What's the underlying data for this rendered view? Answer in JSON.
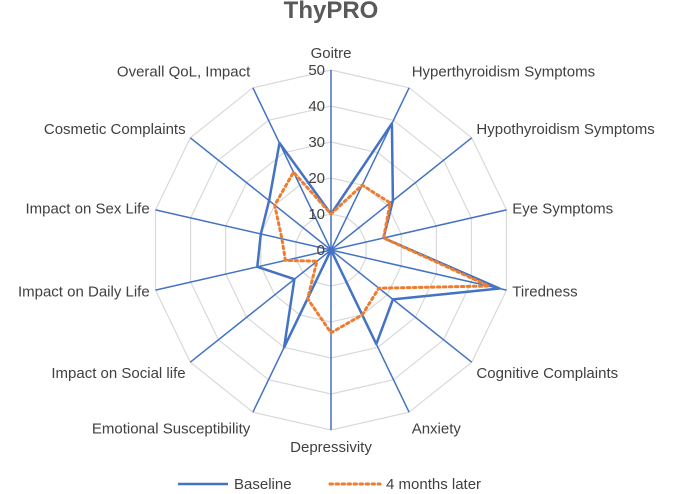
{
  "chart_data": {
    "type": "radar",
    "title": "ThyPRO",
    "categories": [
      "Goitre",
      "Hyperthyroidism Symptoms",
      "Hypothyroidism Symptoms",
      "Eye Symptoms",
      "Tiredness",
      "Cognitive Complaints",
      "Anxiety",
      "Depressivity",
      "Emotional Susceptibility",
      "Impact on Social life",
      "Impact on Daily Life",
      "Impact on Sex Life",
      "Cosmetic Complaints",
      "Overall QoL, Impact"
    ],
    "rlim": [
      0,
      50
    ],
    "ticks": [
      "0",
      "10",
      "20",
      "30",
      "40",
      "50"
    ],
    "series": [
      {
        "name": "Baseline",
        "color": "#4472C4",
        "style": "solid",
        "values": [
          10,
          39,
          22,
          15,
          48,
          22,
          29,
          0,
          30,
          13,
          21,
          20,
          22,
          33
        ]
      },
      {
        "name": "4 months later",
        "color": "#ED7D31",
        "style": "dotted",
        "values": [
          10,
          20,
          21,
          15,
          45,
          17,
          20,
          23,
          15,
          5,
          13,
          14,
          20,
          24
        ]
      }
    ],
    "grid": true,
    "legend_position": "bottom"
  }
}
